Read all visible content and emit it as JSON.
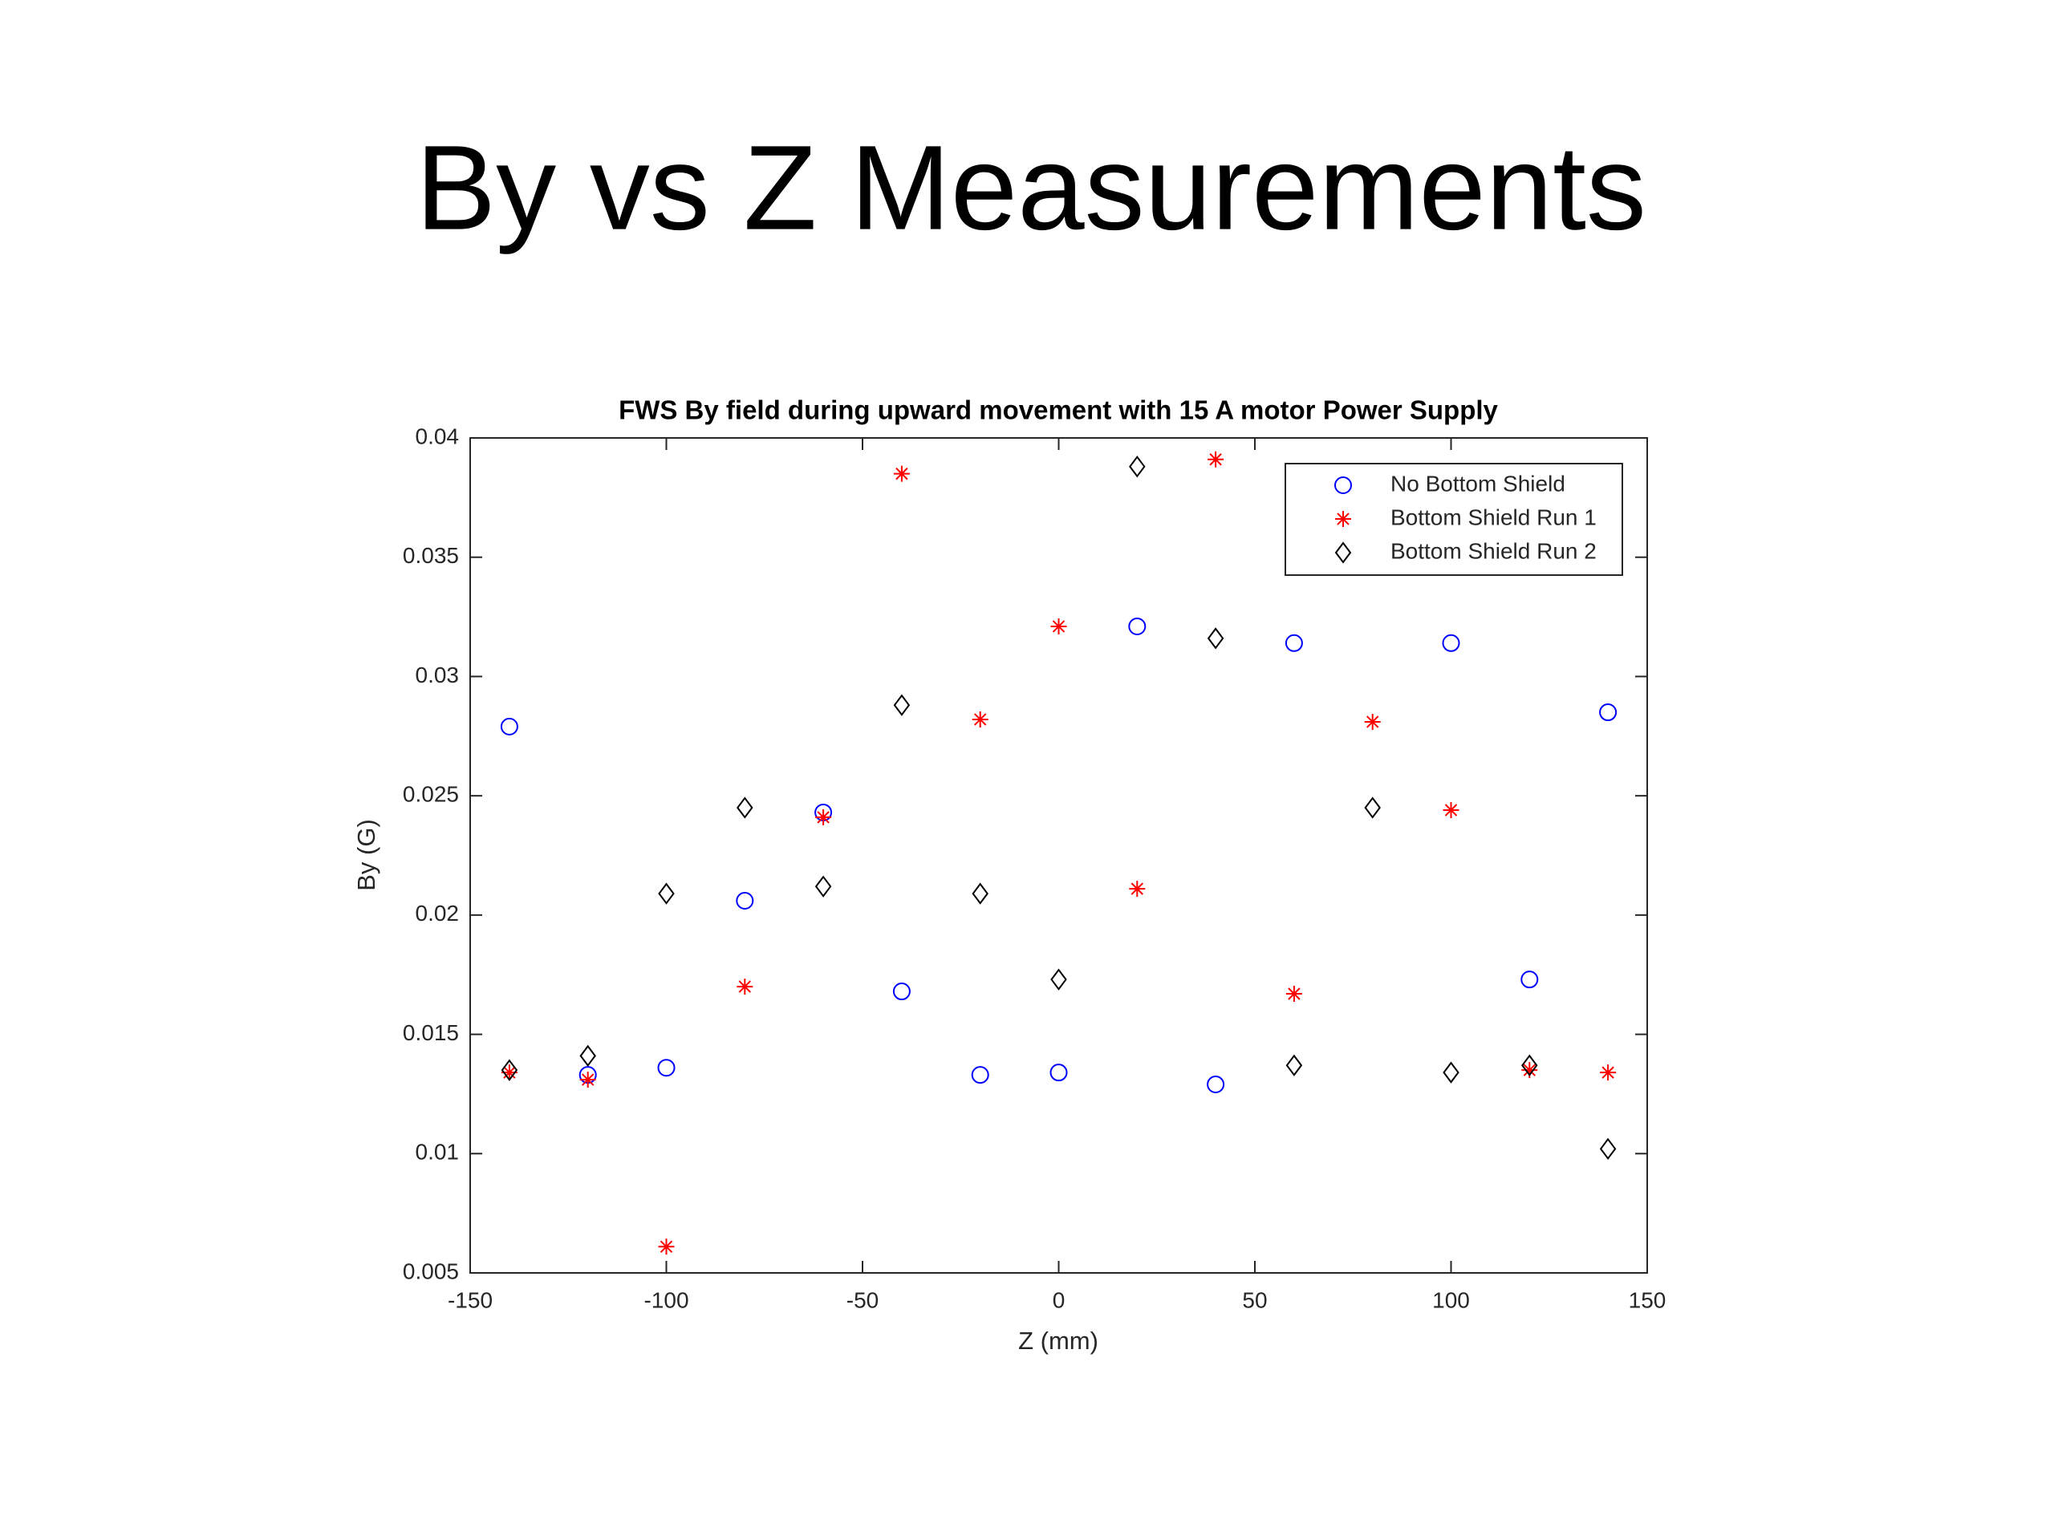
{
  "header": {
    "title": "By vs Z Measurements"
  },
  "chart_data": {
    "type": "scatter",
    "title": "FWS By field during upward movement with 15 A motor Power Supply",
    "x_label": "Z (mm)",
    "y_label": "By (G)",
    "x": [
      -140,
      -120,
      -100,
      -80,
      -60,
      -40,
      -20,
      0,
      20,
      40,
      60,
      80,
      100,
      120,
      140
    ],
    "series": [
      {
        "name": "No Bottom Shield",
        "color": "#0000ff",
        "marker": "circle",
        "values": [
          0.0279,
          0.0133,
          0.0136,
          0.0206,
          0.0243,
          0.0168,
          0.0133,
          0.0134,
          0.0321,
          0.0129,
          0.0314,
          null,
          0.0314,
          0.0173,
          0.0285
        ]
      },
      {
        "name": "Bottom Shield Run 1",
        "color": "#ff0000",
        "marker": "asterisk",
        "values": [
          0.0134,
          0.0131,
          0.0061,
          0.017,
          0.0241,
          0.0385,
          0.0282,
          0.0321,
          0.0211,
          0.0391,
          0.0167,
          0.0281,
          0.0244,
          0.0135,
          0.0134
        ]
      },
      {
        "name": "Bottom Shield Run 2",
        "color": "#000000",
        "marker": "diamond",
        "values": [
          0.0135,
          0.0141,
          0.0209,
          0.0245,
          0.0212,
          0.0288,
          0.0209,
          0.0173,
          0.0388,
          0.0316,
          0.0137,
          0.0245,
          0.0134,
          0.0137,
          0.0102
        ]
      }
    ],
    "xlim": [
      -150,
      150
    ],
    "xticks": [
      -150,
      -100,
      -50,
      0,
      50,
      100,
      150
    ],
    "ylim": [
      0.005,
      0.04
    ],
    "yticks": [
      0.005,
      0.01,
      0.015,
      0.02,
      0.025,
      0.03,
      0.035,
      0.04
    ],
    "grid": false,
    "legend": "upper right"
  }
}
